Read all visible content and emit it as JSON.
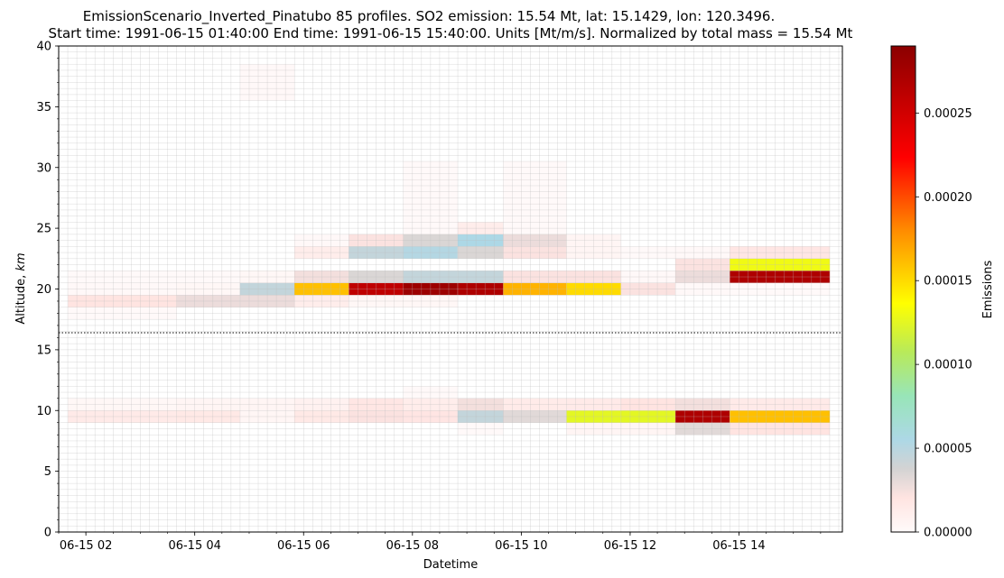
{
  "chart_data": {
    "type": "heatmap",
    "title": "EmissionScenario_Inverted_Pinatubo 85 profiles. SO2  emission: 15.54 Mt, lat: 15.1429, lon: 120.3496.",
    "subtitle": "Start time: 1991-06-15 01:40:00 End time: 1991-06-15 15:40:00. Units [Mt/m/s]. Normalized by total mass = 15.54 Mt",
    "xlabel": "Datetime",
    "ylabel_prefix": "Altitude, ",
    "ylabel_unit": "km",
    "colorbar_label": "Emissions",
    "x_tick_labels": [
      "06-15 02",
      "06-15 04",
      "06-15 06",
      "06-15 08",
      "06-15 10",
      "06-15 12",
      "06-15 14"
    ],
    "x_tick_hours": [
      2,
      4,
      6,
      8,
      10,
      12,
      14
    ],
    "xlim_hours": [
      1.5,
      15.9
    ],
    "x_start": "1991-06-15 01:40:00",
    "x_end": "1991-06-15 15:40:00",
    "y_tick_labels": [
      "0",
      "5",
      "10",
      "15",
      "20",
      "25",
      "30",
      "35",
      "40"
    ],
    "y_ticks": [
      0,
      5,
      10,
      15,
      20,
      25,
      30,
      35,
      40
    ],
    "ylim": [
      0,
      40
    ],
    "colorbar_tick_labels": [
      "0.00000",
      "0.00005",
      "0.00010",
      "0.00015",
      "0.00020",
      "0.00025"
    ],
    "colorbar_ticks": [
      0,
      5e-05,
      0.0001,
      0.00015,
      0.0002,
      0.00025
    ],
    "colorbar_range": [
      0,
      0.00029
    ],
    "colormap_stops": [
      {
        "v": 0.0,
        "c": "#fffafa"
      },
      {
        "v": 0.07,
        "c": "#ffe4e1"
      },
      {
        "v": 0.13,
        "c": "#d3d3d3"
      },
      {
        "v": 0.19,
        "c": "#add8e6"
      },
      {
        "v": 0.28,
        "c": "#98e5b8"
      },
      {
        "v": 0.37,
        "c": "#b8ea5a"
      },
      {
        "v": 0.47,
        "c": "#ffff00"
      },
      {
        "v": 0.62,
        "c": "#ff8c00"
      },
      {
        "v": 0.77,
        "c": "#ff0000"
      },
      {
        "v": 1.0,
        "c": "#8b0000"
      }
    ],
    "tropopause_km": 16.4,
    "grid": true,
    "cells": [
      {
        "h0": 1.67,
        "h1": 3.67,
        "z0": 18.5,
        "z1": 19.5,
        "v": 2e-05
      },
      {
        "h0": 1.67,
        "h1": 3.67,
        "z0": 19.5,
        "z1": 20.5,
        "v": 2e-06
      },
      {
        "h0": 1.67,
        "h1": 3.67,
        "z0": 20.5,
        "z1": 21.5,
        "v": 1e-06
      },
      {
        "h0": 1.67,
        "h1": 3.67,
        "z0": 17.5,
        "z1": 18.5,
        "v": 5e-07
      },
      {
        "h0": 3.67,
        "h1": 4.83,
        "z0": 18.5,
        "z1": 19.5,
        "v": 2.8e-05
      },
      {
        "h0": 3.67,
        "h1": 4.83,
        "z0": 19.5,
        "z1": 20.5,
        "v": 3e-06
      },
      {
        "h0": 3.67,
        "h1": 4.83,
        "z0": 20.5,
        "z1": 21.5,
        "v": 1e-06
      },
      {
        "h0": 4.83,
        "h1": 5.83,
        "z0": 18.5,
        "z1": 19.5,
        "v": 2.8e-05
      },
      {
        "h0": 4.83,
        "h1": 5.83,
        "z0": 19.5,
        "z1": 20.5,
        "v": 4.5e-05
      },
      {
        "h0": 4.83,
        "h1": 5.83,
        "z0": 20.5,
        "z1": 21.5,
        "v": 3e-06
      },
      {
        "h0": 4.83,
        "h1": 5.83,
        "z0": 35.5,
        "z1": 38.5,
        "v": 2e-06
      },
      {
        "h0": 5.83,
        "h1": 6.83,
        "z0": 18.5,
        "z1": 19.5,
        "v": 1.2e-05
      },
      {
        "h0": 5.83,
        "h1": 6.83,
        "z0": 19.5,
        "z1": 20.5,
        "v": 0.00016
      },
      {
        "h0": 5.83,
        "h1": 6.83,
        "z0": 20.5,
        "z1": 21.5,
        "v": 2.5e-05
      },
      {
        "h0": 5.83,
        "h1": 6.83,
        "z0": 22.5,
        "z1": 23.5,
        "v": 1.2e-05
      },
      {
        "h0": 5.83,
        "h1": 6.83,
        "z0": 23.5,
        "z1": 24.5,
        "v": 2e-06
      },
      {
        "h0": 6.83,
        "h1": 7.83,
        "z0": 18.5,
        "z1": 19.5,
        "v": 3e-06
      },
      {
        "h0": 6.83,
        "h1": 7.83,
        "z0": 19.5,
        "z1": 20.5,
        "v": 0.00026
      },
      {
        "h0": 6.83,
        "h1": 7.83,
        "z0": 20.5,
        "z1": 21.5,
        "v": 3.5e-05
      },
      {
        "h0": 6.83,
        "h1": 7.83,
        "z0": 22.5,
        "z1": 23.5,
        "v": 4.5e-05
      },
      {
        "h0": 6.83,
        "h1": 7.83,
        "z0": 23.5,
        "z1": 24.5,
        "v": 2.2e-05
      },
      {
        "h0": 7.83,
        "h1": 8.83,
        "z0": 18.5,
        "z1": 19.5,
        "v": 3e-06
      },
      {
        "h0": 7.83,
        "h1": 8.83,
        "z0": 19.5,
        "z1": 20.5,
        "v": 0.00028
      },
      {
        "h0": 7.83,
        "h1": 8.83,
        "z0": 20.5,
        "z1": 21.5,
        "v": 4.5e-05
      },
      {
        "h0": 7.83,
        "h1": 8.83,
        "z0": 22.5,
        "z1": 23.5,
        "v": 5.2e-05
      },
      {
        "h0": 7.83,
        "h1": 8.83,
        "z0": 23.5,
        "z1": 24.5,
        "v": 3.5e-05
      },
      {
        "h0": 7.83,
        "h1": 8.83,
        "z0": 24.5,
        "z1": 30.5,
        "v": 1e-06
      },
      {
        "h0": 8.83,
        "h1": 9.67,
        "z0": 19.5,
        "z1": 20.5,
        "v": 0.00027
      },
      {
        "h0": 8.83,
        "h1": 9.67,
        "z0": 20.5,
        "z1": 21.5,
        "v": 4.5e-05
      },
      {
        "h0": 8.83,
        "h1": 9.67,
        "z0": 22.5,
        "z1": 23.5,
        "v": 3.5e-05
      },
      {
        "h0": 8.83,
        "h1": 9.67,
        "z0": 23.5,
        "z1": 24.5,
        "v": 5.5e-05
      },
      {
        "h0": 8.83,
        "h1": 9.67,
        "z0": 24.5,
        "z1": 25.5,
        "v": 1.2e-05
      },
      {
        "h0": 9.67,
        "h1": 10.83,
        "z0": 19.5,
        "z1": 20.5,
        "v": 0.000165
      },
      {
        "h0": 9.67,
        "h1": 10.83,
        "z0": 20.5,
        "z1": 21.5,
        "v": 2.2e-05
      },
      {
        "h0": 9.67,
        "h1": 10.83,
        "z0": 22.5,
        "z1": 23.5,
        "v": 2.2e-05
      },
      {
        "h0": 9.67,
        "h1": 10.83,
        "z0": 23.5,
        "z1": 24.5,
        "v": 2.8e-05
      },
      {
        "h0": 9.67,
        "h1": 10.83,
        "z0": 24.5,
        "z1": 30.5,
        "v": 1e-06
      },
      {
        "h0": 10.83,
        "h1": 11.83,
        "z0": 19.5,
        "z1": 20.5,
        "v": 0.00015
      },
      {
        "h0": 10.83,
        "h1": 11.83,
        "z0": 20.5,
        "z1": 21.5,
        "v": 2.2e-05
      },
      {
        "h0": 10.83,
        "h1": 11.83,
        "z0": 22.5,
        "z1": 24.5,
        "v": 5e-06
      },
      {
        "h0": 11.83,
        "h1": 12.83,
        "z0": 19.5,
        "z1": 20.5,
        "v": 2.2e-05
      },
      {
        "h0": 11.83,
        "h1": 12.83,
        "z0": 20.5,
        "z1": 21.5,
        "v": 2e-06
      },
      {
        "h0": 11.83,
        "h1": 12.83,
        "z0": 22.5,
        "z1": 23.5,
        "v": 1e-06
      },
      {
        "h0": 12.83,
        "h1": 13.83,
        "z0": 20.5,
        "z1": 21.5,
        "v": 2.8e-05
      },
      {
        "h0": 12.83,
        "h1": 13.83,
        "z0": 21.5,
        "z1": 22.5,
        "v": 2.2e-05
      },
      {
        "h0": 12.83,
        "h1": 13.83,
        "z0": 22.5,
        "z1": 23.5,
        "v": 2e-06
      },
      {
        "h0": 12.83,
        "h1": 13.83,
        "z0": 19.5,
        "z1": 20.5,
        "v": 2e-06
      },
      {
        "h0": 13.83,
        "h1": 15.67,
        "z0": 20.5,
        "z1": 21.5,
        "v": 0.00027
      },
      {
        "h0": 13.83,
        "h1": 15.67,
        "z0": 21.5,
        "z1": 22.5,
        "v": 0.00013
      },
      {
        "h0": 13.83,
        "h1": 15.67,
        "z0": 22.5,
        "z1": 23.5,
        "v": 1.8e-05
      },
      {
        "h0": 13.83,
        "h1": 15.67,
        "z0": 19.5,
        "z1": 20.5,
        "v": 1e-06
      },
      {
        "h0": 1.67,
        "h1": 3.67,
        "z0": 9.0,
        "z1": 10.0,
        "v": 1.5e-05
      },
      {
        "h0": 1.67,
        "h1": 3.67,
        "z0": 10.0,
        "z1": 11.0,
        "v": 3e-06
      },
      {
        "h0": 3.67,
        "h1": 4.83,
        "z0": 9.0,
        "z1": 10.0,
        "v": 1.6e-05
      },
      {
        "h0": 3.67,
        "h1": 4.83,
        "z0": 10.0,
        "z1": 11.0,
        "v": 5e-06
      },
      {
        "h0": 4.83,
        "h1": 5.83,
        "z0": 9.0,
        "z1": 10.0,
        "v": 4e-06
      },
      {
        "h0": 4.83,
        "h1": 5.83,
        "z0": 10.0,
        "z1": 11.0,
        "v": 5e-06
      },
      {
        "h0": 5.83,
        "h1": 6.83,
        "z0": 9.0,
        "z1": 10.0,
        "v": 1.6e-05
      },
      {
        "h0": 5.83,
        "h1": 6.83,
        "z0": 10.0,
        "z1": 11.0,
        "v": 8e-06
      },
      {
        "h0": 6.83,
        "h1": 7.83,
        "z0": 9.0,
        "z1": 10.0,
        "v": 2.2e-05
      },
      {
        "h0": 6.83,
        "h1": 7.83,
        "z0": 10.0,
        "z1": 11.0,
        "v": 1.8e-05
      },
      {
        "h0": 7.83,
        "h1": 8.83,
        "z0": 9.0,
        "z1": 10.0,
        "v": 1.9e-05
      },
      {
        "h0": 7.83,
        "h1": 8.83,
        "z0": 10.0,
        "z1": 11.0,
        "v": 1.2e-05
      },
      {
        "h0": 7.83,
        "h1": 8.83,
        "z0": 11.0,
        "z1": 12.0,
        "v": 1e-06
      },
      {
        "h0": 8.83,
        "h1": 9.67,
        "z0": 8.0,
        "z1": 9.0,
        "v": 1e-06
      },
      {
        "h0": 8.83,
        "h1": 9.67,
        "z0": 9.0,
        "z1": 10.0,
        "v": 4.5e-05
      },
      {
        "h0": 8.83,
        "h1": 9.67,
        "z0": 10.0,
        "z1": 11.0,
        "v": 2.5e-05
      },
      {
        "h0": 9.67,
        "h1": 10.83,
        "z0": 9.0,
        "z1": 10.0,
        "v": 3.2e-05
      },
      {
        "h0": 9.67,
        "h1": 10.83,
        "z0": 10.0,
        "z1": 11.0,
        "v": 1.4e-05
      },
      {
        "h0": 10.83,
        "h1": 11.83,
        "z0": 8.0,
        "z1": 9.0,
        "v": 5e-06
      },
      {
        "h0": 10.83,
        "h1": 11.83,
        "z0": 9.0,
        "z1": 10.0,
        "v": 0.000125
      },
      {
        "h0": 10.83,
        "h1": 11.83,
        "z0": 10.0,
        "z1": 11.0,
        "v": 1.5e-05
      },
      {
        "h0": 11.83,
        "h1": 12.83,
        "z0": 8.0,
        "z1": 9.0,
        "v": 5e-06
      },
      {
        "h0": 11.83,
        "h1": 12.83,
        "z0": 9.0,
        "z1": 10.0,
        "v": 0.000125
      },
      {
        "h0": 11.83,
        "h1": 12.83,
        "z0": 10.0,
        "z1": 11.0,
        "v": 2e-05
      },
      {
        "h0": 12.83,
        "h1": 13.83,
        "z0": 8.0,
        "z1": 9.0,
        "v": 3.2e-05
      },
      {
        "h0": 12.83,
        "h1": 13.83,
        "z0": 9.0,
        "z1": 10.0,
        "v": 0.00027
      },
      {
        "h0": 12.83,
        "h1": 13.83,
        "z0": 10.0,
        "z1": 11.0,
        "v": 2.5e-05
      },
      {
        "h0": 13.83,
        "h1": 15.67,
        "z0": 8.0,
        "z1": 9.0,
        "v": 2e-05
      },
      {
        "h0": 13.83,
        "h1": 15.67,
        "z0": 9.0,
        "z1": 10.0,
        "v": 0.00016
      },
      {
        "h0": 13.83,
        "h1": 15.67,
        "z0": 10.0,
        "z1": 11.0,
        "v": 1.5e-05
      }
    ]
  }
}
